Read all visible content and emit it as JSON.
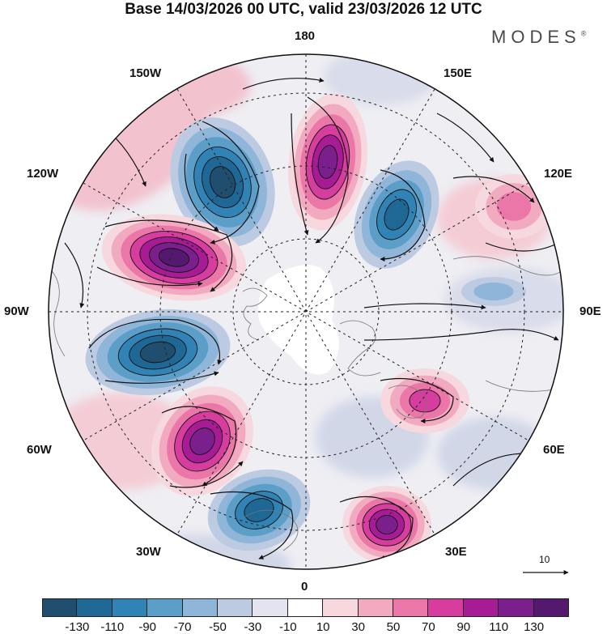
{
  "title": "Base 14/03/2026 00 UTC, valid 23/03/2026 12 UTC",
  "brand": "MODES",
  "brand_mark": "®",
  "longitude_labels": {
    "top": "180",
    "top_left": "150W",
    "top_right": "150E",
    "upper_left": "120W",
    "upper_right": "120E",
    "left": "90W",
    "right": "90E",
    "lower_left": "60W",
    "lower_right": "60E",
    "bottom_left": "30W",
    "bottom_right": "30E",
    "bottom": "0"
  },
  "reference_vector": {
    "label": "10"
  },
  "colorbar": {
    "ticks": [
      "-130",
      "-110",
      "-90",
      "-70",
      "-50",
      "-30",
      "-10",
      "10",
      "30",
      "50",
      "70",
      "90",
      "110",
      "130"
    ],
    "colors": [
      "#1f4e6f",
      "#1f6794",
      "#3182b5",
      "#5b9fc9",
      "#8fb6d9",
      "#bccbe2",
      "#e3e4f0",
      "#ffffff",
      "#f7d8df",
      "#f2aac0",
      "#eb77a8",
      "#d73c9f",
      "#a71b95",
      "#7a1f8c",
      "#54196f"
    ]
  },
  "anomaly_centers": [
    {
      "name": "negative-center-150w",
      "sign": "negative",
      "strength": 130
    },
    {
      "name": "positive-center-180",
      "sign": "positive",
      "strength": 110
    },
    {
      "name": "negative-center-150e",
      "sign": "negative",
      "strength": 90
    },
    {
      "name": "positive-center-120w",
      "sign": "positive",
      "strength": 130
    },
    {
      "name": "negative-center-90w",
      "sign": "negative",
      "strength": 130
    },
    {
      "name": "positive-center-60w",
      "sign": "positive",
      "strength": 110
    },
    {
      "name": "negative-center-30w",
      "sign": "negative",
      "strength": 90
    },
    {
      "name": "positive-center-30e",
      "sign": "positive",
      "strength": 110
    },
    {
      "name": "positive-center-60e",
      "sign": "positive",
      "strength": 70
    },
    {
      "name": "positive-center-120e",
      "sign": "positive",
      "strength": 50
    },
    {
      "name": "negative-center-90e",
      "sign": "negative",
      "strength": 30
    }
  ]
}
